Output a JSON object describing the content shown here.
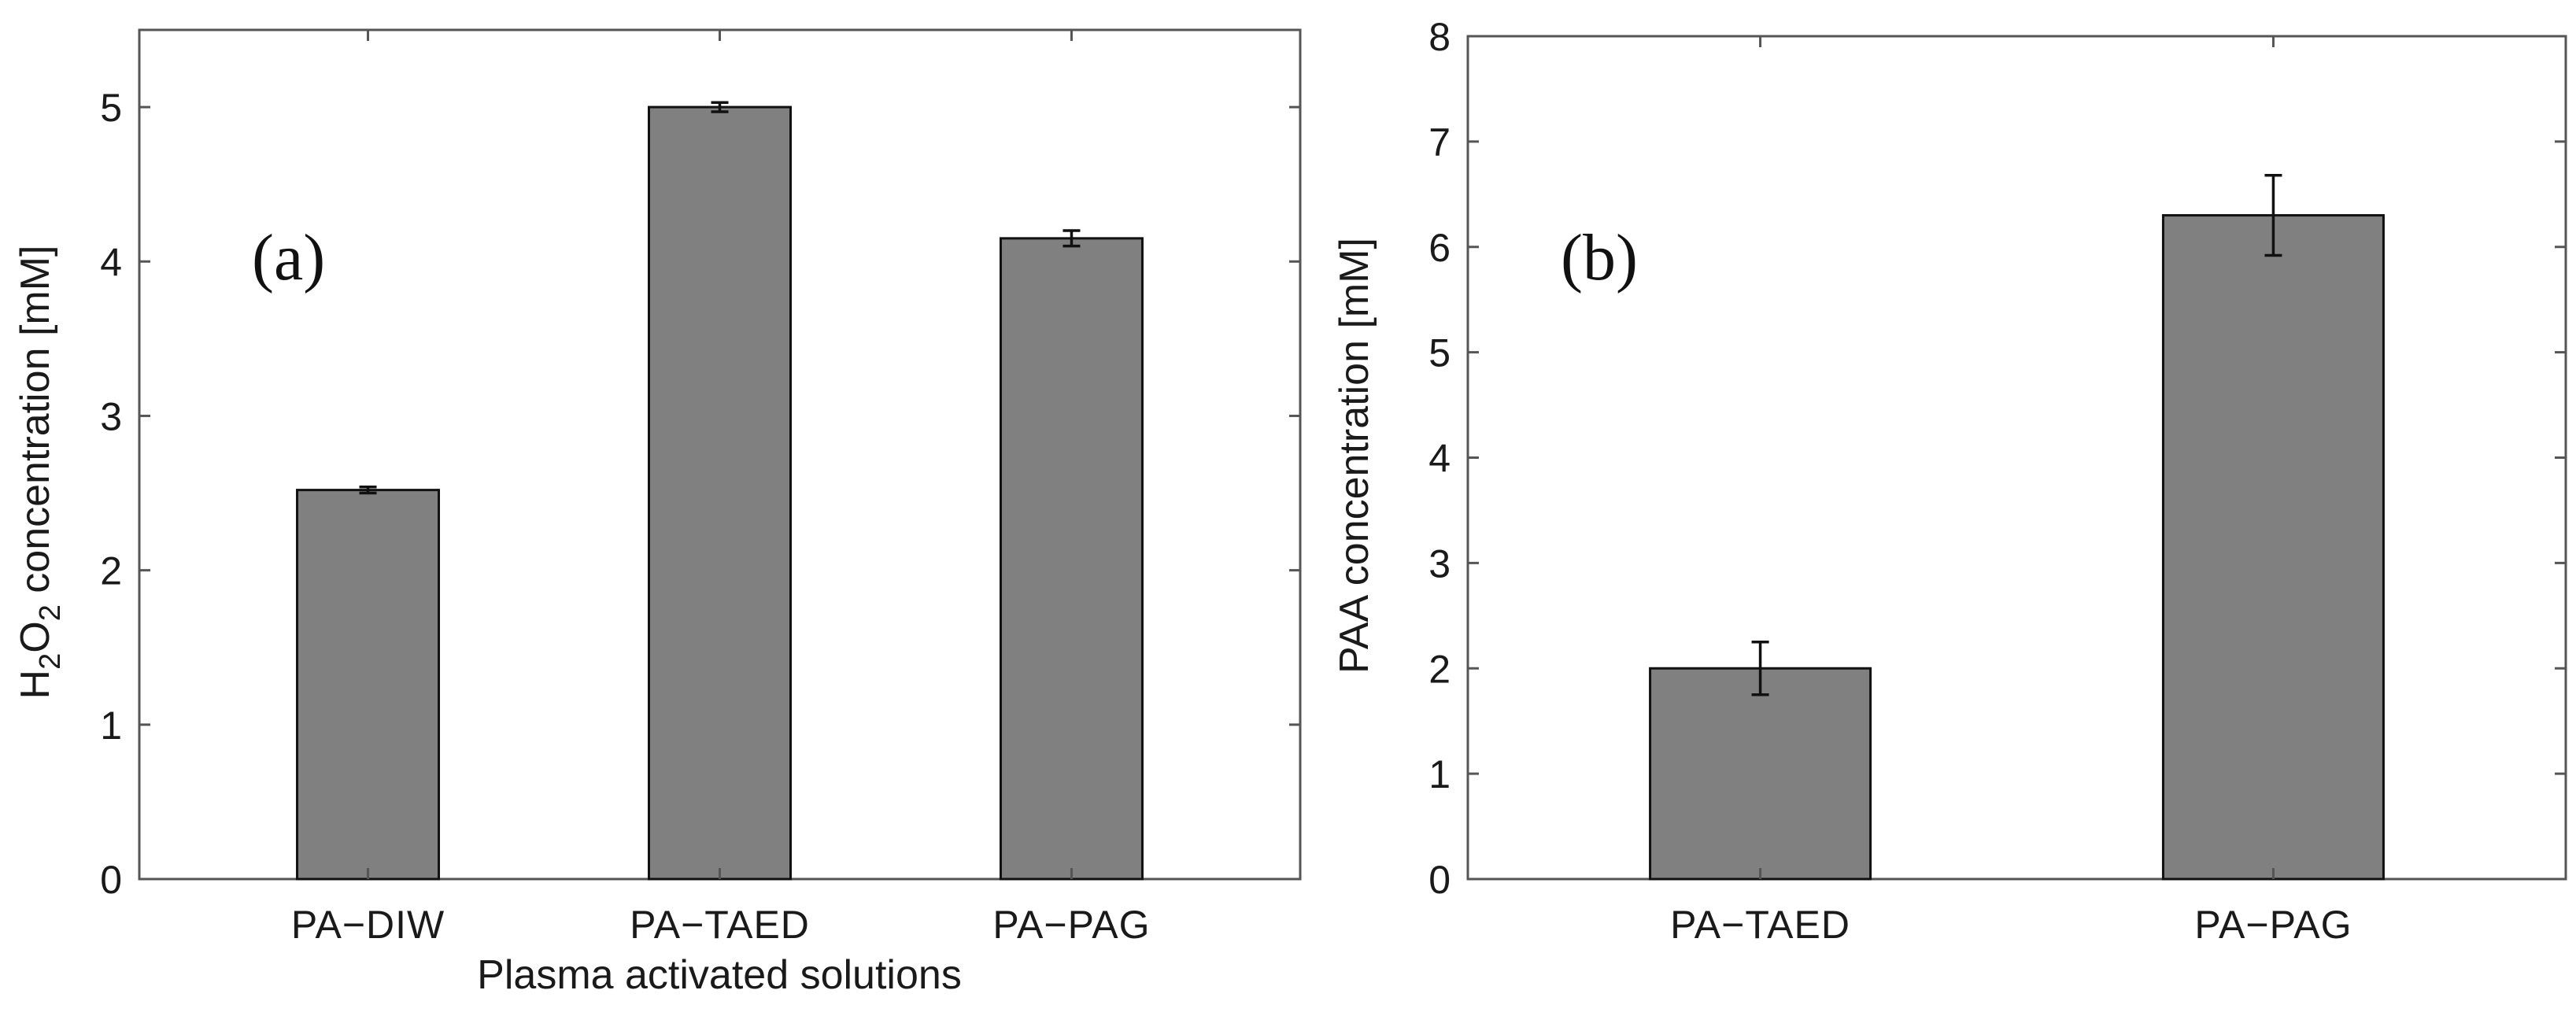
{
  "chart_data": [
    {
      "type": "bar",
      "panel_label": "(a)",
      "categories": [
        "PA−DIW",
        "PA−TAED",
        "PA−PAG"
      ],
      "values": [
        2.52,
        5.0,
        4.15
      ],
      "errors": [
        0.02,
        0.03,
        0.05
      ],
      "title": "",
      "xlabel": "Plasma activated solutions",
      "ylabel_parts": [
        "H",
        "2",
        "O",
        "2",
        " concentration [mM]"
      ],
      "ylim": [
        0,
        5.5
      ],
      "yticks": [
        0,
        1,
        2,
        3,
        4,
        5
      ],
      "ytick_labels": [
        "0",
        "1",
        "2",
        "3",
        "4",
        "5"
      ],
      "color": "#808080"
    },
    {
      "type": "bar",
      "panel_label": "(b)",
      "categories": [
        "PA−TAED",
        "PA−PAG"
      ],
      "values": [
        2.0,
        6.3
      ],
      "errors": [
        0.25,
        0.38
      ],
      "title": "",
      "xlabel": "",
      "ylabel": "PAA concentration [mM]",
      "ylim": [
        0,
        8
      ],
      "yticks": [
        0,
        1,
        2,
        3,
        4,
        5,
        6,
        7,
        8
      ],
      "ytick_labels": [
        "0",
        "1",
        "2",
        "3",
        "4",
        "5",
        "6",
        "7",
        "8"
      ],
      "color": "#808080"
    }
  ]
}
